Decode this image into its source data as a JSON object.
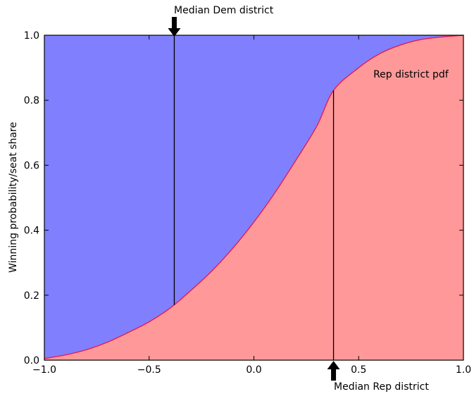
{
  "chart_data": {
    "type": "area",
    "ylabel": "Winning probability/seat share",
    "xlim": [
      -1.0,
      1.0
    ],
    "ylim": [
      0.0,
      1.0
    ],
    "x_ticks": [
      -1.0,
      -0.5,
      0.0,
      0.5,
      1.0
    ],
    "x_tick_labels": [
      "−1.0",
      "−0.5",
      "0.0",
      "0.5",
      "1.0"
    ],
    "y_ticks": [
      0.0,
      0.2,
      0.4,
      0.6,
      0.8,
      1.0
    ],
    "y_tick_labels": [
      "0.0",
      "0.2",
      "0.4",
      "0.6",
      "0.8",
      "1.0"
    ],
    "grid": false,
    "curve": {
      "x": [
        -1.0,
        -0.9,
        -0.8,
        -0.7,
        -0.6,
        -0.5,
        -0.4,
        -0.3,
        -0.2,
        -0.1,
        0.0,
        0.1,
        0.2,
        0.3,
        0.38,
        0.5,
        0.6,
        0.7,
        0.8,
        0.9,
        1.0
      ],
      "y": [
        0.005,
        0.016,
        0.032,
        0.055,
        0.085,
        0.118,
        0.16,
        0.215,
        0.275,
        0.345,
        0.425,
        0.515,
        0.615,
        0.72,
        0.83,
        0.9,
        0.943,
        0.97,
        0.987,
        0.995,
        1.0
      ],
      "color": "#e8194f"
    },
    "fill_above_color": "#8080ff",
    "fill_below_color": "#ff9999",
    "vlines": [
      {
        "x": -0.38,
        "y_from": 0.17,
        "y_to": 1.0
      },
      {
        "x": 0.38,
        "y_from": 0.0,
        "y_to": 0.83
      }
    ],
    "annotations": {
      "median_dem": "Median Dem district",
      "median_rep": "Median Rep district",
      "rep_pdf": "Rep district pdf"
    },
    "annotation_positions": {
      "median_dem_x": -0.38,
      "median_rep_x": 0.38,
      "rep_pdf_x": 0.57,
      "rep_pdf_y": 0.87
    }
  }
}
